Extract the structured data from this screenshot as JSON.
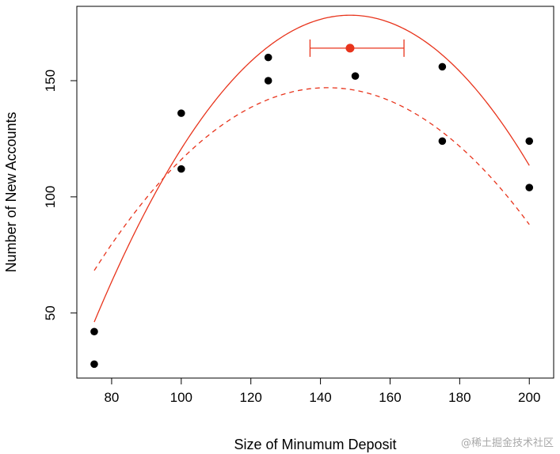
{
  "chart_data": {
    "type": "scatter",
    "xlabel": "Size of Minumum Deposit",
    "ylabel": "Number of New Accounts",
    "xlim": [
      70,
      207
    ],
    "ylim": [
      22,
      182
    ],
    "xticks": [
      80,
      100,
      120,
      140,
      160,
      180,
      200
    ],
    "yticks": [
      50,
      100,
      150
    ],
    "points": [
      {
        "x": 75,
        "y": 28
      },
      {
        "x": 75,
        "y": 42
      },
      {
        "x": 100,
        "y": 112
      },
      {
        "x": 100,
        "y": 136
      },
      {
        "x": 125,
        "y": 150
      },
      {
        "x": 125,
        "y": 160
      },
      {
        "x": 150,
        "y": 152
      },
      {
        "x": 175,
        "y": 124
      },
      {
        "x": 175,
        "y": 156
      },
      {
        "x": 200,
        "y": 104
      },
      {
        "x": 200,
        "y": 124
      }
    ],
    "fit_solid": {
      "color": "#e8341c",
      "coef": [
        -360.6,
        7.2545,
        -0.02442
      ]
    },
    "fit_dashed": {
      "color": "#e8341c",
      "coef": [
        -206.4,
        4.9764,
        -0.01752
      ]
    },
    "peak": {
      "x": 148.5,
      "y": 164,
      "ci": [
        137,
        164
      ],
      "color": "#e8341c"
    },
    "point_color": "#000000"
  },
  "watermark": "@稀土掘金技术社区"
}
